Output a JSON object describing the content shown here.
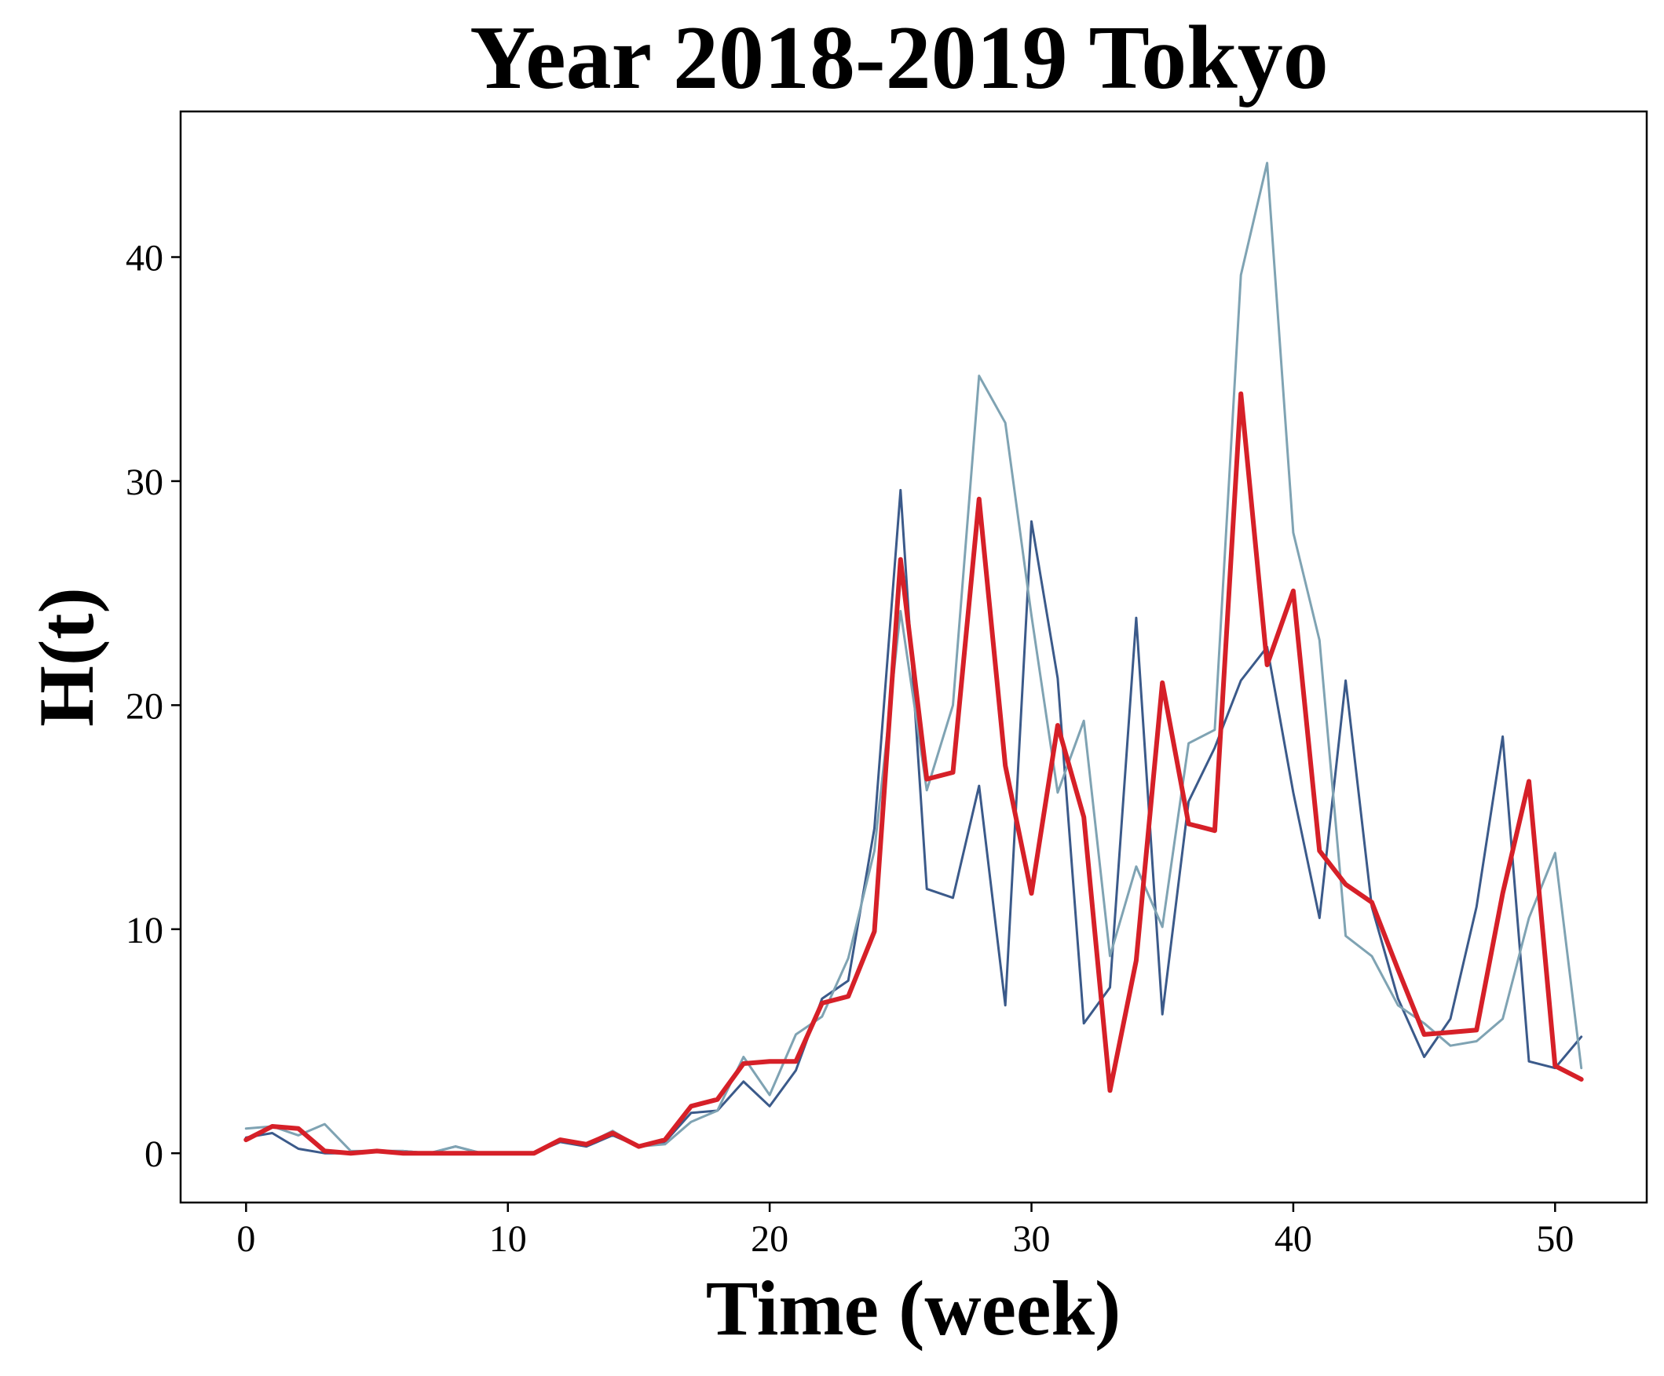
{
  "chart_data": {
    "type": "line",
    "title": "Year 2018-2019 Tokyo",
    "xlabel": "Time (week)",
    "ylabel": "H(t)",
    "xlim": [
      -2.5,
      53.5
    ],
    "ylim": [
      -2.2,
      46.5
    ],
    "xticks": [
      0,
      10,
      20,
      30,
      40,
      50
    ],
    "yticks": [
      0,
      10,
      20,
      30,
      40
    ],
    "grid": false,
    "x": [
      0,
      1,
      2,
      3,
      4,
      5,
      6,
      7,
      8,
      9,
      10,
      11,
      12,
      13,
      14,
      15,
      16,
      17,
      18,
      19,
      20,
      21,
      22,
      23,
      24,
      25,
      26,
      27,
      28,
      29,
      30,
      31,
      32,
      33,
      34,
      35,
      36,
      37,
      38,
      39,
      40,
      41,
      42,
      43,
      44,
      45,
      46,
      47,
      48,
      49,
      50,
      51
    ],
    "series": [
      {
        "color": "#3b5a8a",
        "values": [
          0.7,
          0.9,
          0.2,
          0.0,
          0.0,
          0.1,
          0.1,
          0.0,
          0.3,
          0.0,
          0.0,
          0.0,
          0.5,
          0.3,
          0.8,
          0.3,
          0.5,
          1.8,
          1.9,
          3.2,
          2.1,
          3.7,
          6.9,
          7.7,
          14.5,
          29.6,
          11.8,
          11.4,
          16.4,
          6.6,
          28.2,
          21.2,
          5.8,
          7.4,
          23.9,
          6.2,
          15.7,
          18.1,
          21.1,
          22.6,
          16.1,
          10.5,
          21.1,
          11.0,
          6.9,
          4.3,
          6.0,
          11.0,
          18.6,
          4.1,
          3.8,
          5.2
        ]
      },
      {
        "color": "#7fa3b3",
        "values": [
          1.1,
          1.2,
          0.8,
          1.3,
          0.1,
          0.1,
          0.1,
          0.0,
          0.3,
          0.0,
          0.0,
          0.0,
          0.6,
          0.4,
          1.0,
          0.3,
          0.4,
          1.4,
          1.9,
          4.3,
          2.6,
          5.3,
          6.1,
          8.7,
          13.5,
          24.2,
          16.2,
          20.0,
          34.7,
          32.6,
          24.0,
          16.1,
          19.3,
          8.8,
          12.8,
          10.1,
          18.3,
          18.9,
          39.2,
          44.2,
          27.7,
          22.9,
          9.7,
          8.8,
          6.6,
          5.8,
          4.8,
          5.0,
          6.0,
          10.5,
          13.4,
          3.8
        ]
      },
      {
        "color": "#d62028",
        "values": [
          0.6,
          1.2,
          1.1,
          0.1,
          0.0,
          0.1,
          0.0,
          0.0,
          0.0,
          0.0,
          0.0,
          0.0,
          0.6,
          0.4,
          0.9,
          0.3,
          0.6,
          2.1,
          2.4,
          4.0,
          4.1,
          4.1,
          6.7,
          7.0,
          9.9,
          26.5,
          16.7,
          17.0,
          29.2,
          17.3,
          11.6,
          19.1,
          15.0,
          2.8,
          8.6,
          21.0,
          14.7,
          14.4,
          33.9,
          21.8,
          25.1,
          13.5,
          12.0,
          11.2,
          8.2,
          5.3,
          5.4,
          5.5,
          11.6,
          16.6,
          3.9,
          3.3
        ]
      }
    ]
  }
}
